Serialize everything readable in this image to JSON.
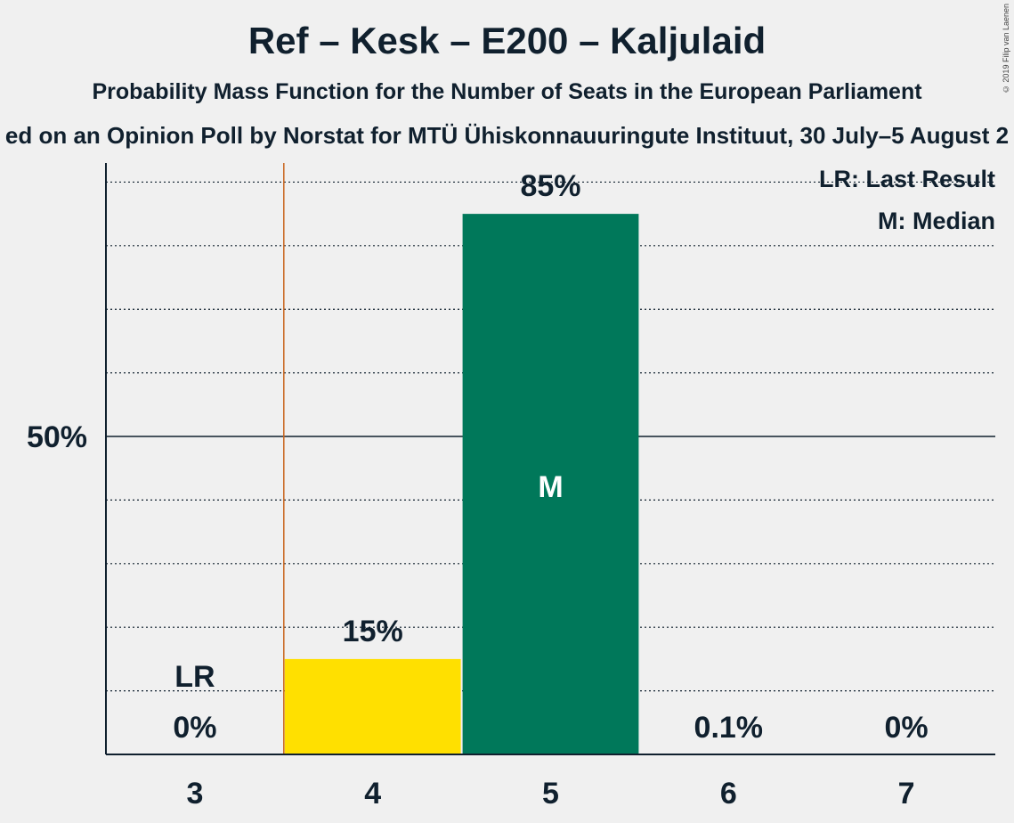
{
  "header": {
    "title": "Ref – Kesk – E200 – Kaljulaid",
    "subtitle": "Probability Mass Function for the Number of Seats in the European Parliament",
    "source": "ed on an Opinion Poll by Norstat for MTÜ Ühiskonnauuringute Instituut, 30 July–5 August 2",
    "copyright": "© 2019 Filip van Laenen"
  },
  "legend": {
    "lr": "LR: Last Result",
    "median": "M: Median"
  },
  "colors": {
    "yellow": "#ffe000",
    "green": "#00785a",
    "last_result_line": "#c8641e",
    "text": "#10202e"
  },
  "chart_data": {
    "type": "bar",
    "categories": [
      "3",
      "4",
      "5",
      "6",
      "7"
    ],
    "values": [
      0,
      15,
      85,
      0.1,
      0
    ],
    "value_labels": [
      "0%",
      "15%",
      "85%",
      "0.1%",
      "0%"
    ],
    "bar_colors": [
      "#ffe000",
      "#ffe000",
      "#00785a",
      "#00785a",
      "#00785a"
    ],
    "last_result_category": "3",
    "last_result_label": "LR",
    "median_category": "5",
    "median_label": "M",
    "ytick_label": "50%",
    "ytick_value": 50,
    "gridlines": [
      10,
      20,
      30,
      40,
      60,
      70,
      80,
      90
    ],
    "ylim": [
      0,
      93
    ]
  }
}
